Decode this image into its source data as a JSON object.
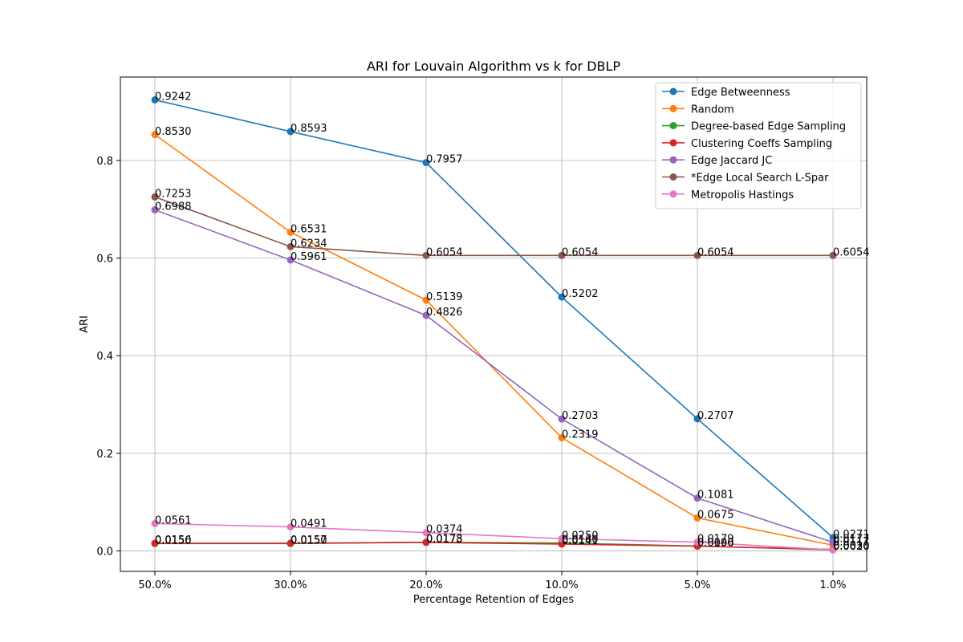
{
  "chart_data": {
    "type": "line",
    "title": "ARI for Louvain Algorithm vs k for DBLP",
    "xlabel": "Percentage Retention of Edges",
    "ylabel": "ARI",
    "categories": [
      "50.0%",
      "30.0%",
      "20.0%",
      "10.0%",
      "5.0%",
      "1.0%"
    ],
    "ylim": [
      -0.042,
      0.971
    ],
    "yticks": [
      0.0,
      0.2,
      0.4,
      0.6,
      0.8
    ],
    "ytick_labels": [
      "0.0",
      "0.2",
      "0.4",
      "0.6",
      "0.8"
    ],
    "grid": true,
    "legend_position": "top-right",
    "series": [
      {
        "name": "Edge Betweenness",
        "color": "#1f77b4",
        "values": [
          0.9242,
          0.8593,
          0.7957,
          0.5202,
          0.2707,
          0.0271
        ],
        "labels": [
          "0.9242",
          "0.8593",
          "0.7957",
          "0.5202",
          "0.2707",
          "0.0271"
        ]
      },
      {
        "name": "Random",
        "color": "#ff7f0e",
        "values": [
          0.853,
          0.6531,
          0.5139,
          0.2319,
          0.0675,
          0.0117
        ],
        "labels": [
          "0.8530",
          "0.6531",
          "0.5139",
          "0.2319",
          "0.0675",
          "0.0117"
        ]
      },
      {
        "name": "Degree-based Edge Sampling",
        "color": "#2ca02c",
        "values": [
          0.015,
          0.015,
          0.0178,
          0.016,
          0.01,
          0.002
        ],
        "labels": [
          "0.0150",
          "0.0150",
          "0.0178",
          "0.0160",
          "0.0100",
          "0.0020"
        ]
      },
      {
        "name": "Clustering Coeffs Sampling",
        "color": "#d62728",
        "values": [
          0.0156,
          0.0157,
          0.0173,
          0.0141,
          0.0096,
          0.003
        ],
        "labels": [
          "0.0156",
          "0.0157",
          "0.0173",
          "0.0141",
          "0.0096",
          "0.0030"
        ]
      },
      {
        "name": "Edge Jaccard JC",
        "color": "#9467bd",
        "values": [
          0.6988,
          0.5961,
          0.4826,
          0.2703,
          0.1081,
          0.0177
        ],
        "labels": [
          "0.6988",
          "0.5961",
          "0.4826",
          "0.2703",
          "0.1081",
          "0.0177"
        ]
      },
      {
        "name": "*Edge Local Search L-Spar",
        "color": "#8c564b",
        "values": [
          0.7253,
          0.6234,
          0.6054,
          0.6054,
          0.6054,
          0.6054
        ],
        "labels": [
          "0.7253",
          "0.6234",
          "0.6054",
          "0.6054",
          "0.6054",
          "0.6054"
        ]
      },
      {
        "name": "Metropolis Hastings",
        "color": "#e377c2",
        "values": [
          0.0561,
          0.0491,
          0.0374,
          0.025,
          0.0179,
          0.002
        ],
        "labels": [
          "0.0561",
          "0.0491",
          "0.0374",
          "0.0250",
          "0.0179",
          "0.0020"
        ]
      }
    ]
  }
}
